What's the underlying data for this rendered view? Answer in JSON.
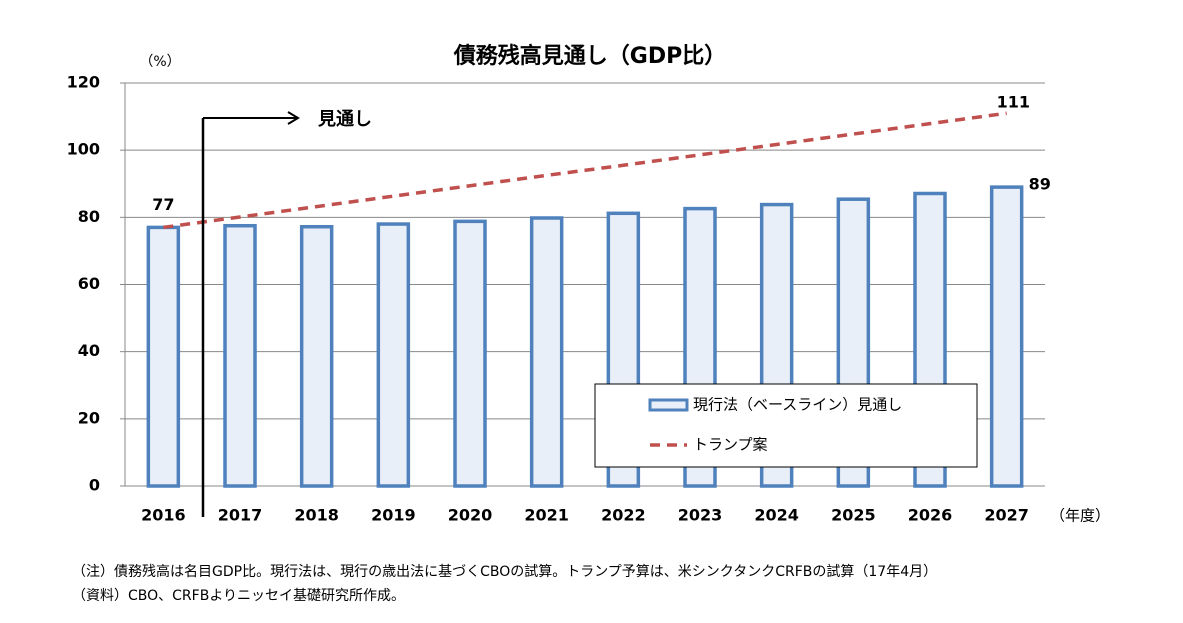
{
  "chart_data": {
    "type": "bar",
    "title": "債務残高見通し（GDP比）",
    "y_unit": "（%）",
    "x_unit": "（年度）",
    "annotation": "見通し",
    "categories": [
      "2016",
      "2017",
      "2018",
      "2019",
      "2020",
      "2021",
      "2022",
      "2023",
      "2024",
      "2025",
      "2026",
      "2027"
    ],
    "series": [
      {
        "name": "現行法（ベースライン）見通し",
        "type": "bar",
        "color": "#4f81bd",
        "fill": "#e9eff8",
        "values": [
          77,
          77.5,
          77.2,
          78,
          78.8,
          79.8,
          81.2,
          82.6,
          83.8,
          85.4,
          87.1,
          89
        ],
        "value_labels": [
          null,
          null,
          null,
          null,
          null,
          null,
          null,
          null,
          null,
          null,
          null,
          "89"
        ]
      },
      {
        "name": "トランプ案",
        "type": "line",
        "color": "#c0504d",
        "dashed": true,
        "values": [
          77,
          80.1,
          83.2,
          86.3,
          89.4,
          92.5,
          95.5,
          98.6,
          101.7,
          104.8,
          107.9,
          111
        ],
        "value_labels": [
          "77",
          null,
          null,
          null,
          null,
          null,
          null,
          null,
          null,
          null,
          null,
          "111"
        ]
      }
    ],
    "ylim": [
      0,
      120
    ],
    "yticks": [
      0,
      20,
      40,
      60,
      80,
      100,
      120
    ],
    "grid": true,
    "notes": [
      "（注）債務残高は名目GDP比。現行法は、現行の歳出法に基づくCBOの試算。トランプ予算は、米シンクタンクCRFBの試算（17年4月）",
      "（資料）CBO、CRFBよりニッセイ基礎研究所作成。"
    ]
  }
}
